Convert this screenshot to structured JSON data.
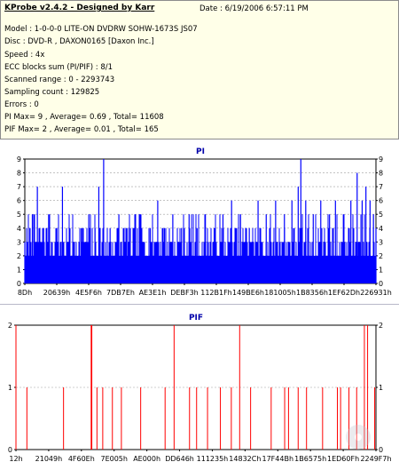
{
  "header": {
    "title": "KProbe v2.4.2 - Designed by Karr",
    "date": "Date : 6/19/2006 6:57:11 PM"
  },
  "info_lines": [
    "Model : 1-0-0-0 LITE-ON DVDRW SOHW-1673S JS07",
    "Disc : DVD-R , DAXON0165 [Daxon Inc.]",
    "Speed : 4x",
    "ECC blocks sum (PI/PIF) : 8/1",
    "Scanned range : 0 - 2293743",
    "Sampling count : 129825",
    "Errors : 0",
    "PI Max= 9 , Average= 0.69 , Total= 11608",
    "PIF Max= 2 , Average= 0.01 , Total= 165"
  ],
  "colors": {
    "pi_bar": "#0000ff",
    "pif_bar": "#ff0000",
    "plot_bg": "#ffffff",
    "title_text": "#0000aa",
    "grid": "#a0a0a0"
  },
  "chart_data": [
    {
      "type": "bar",
      "title": "PI",
      "x_ticks": [
        "8Dh",
        "20639h",
        "4E5F6h",
        "7DB7Eh",
        "AE3E1h",
        "DEBF3h",
        "112B1Fh",
        "149BE6h",
        "181005h",
        "1B8356h",
        "1EF62Dh",
        "226931h"
      ],
      "y_ticks": [
        0,
        1,
        2,
        3,
        4,
        5,
        6,
        7,
        8,
        9
      ],
      "ylim": [
        0,
        9
      ],
      "grid": true,
      "max": 9,
      "average": 0.69,
      "baseline_level": 2,
      "peaks": [
        {
          "x": "0x0008D",
          "y": 3
        },
        {
          "x": "0x08000",
          "y": 4
        },
        {
          "x": "0x0C000",
          "y": 5
        },
        {
          "x": "0x14000",
          "y": 7
        },
        {
          "x": "0x1E000",
          "y": 4
        },
        {
          "x": "0x26000",
          "y": 5
        },
        {
          "x": "0x33000",
          "y": 4
        },
        {
          "x": "0x3C000",
          "y": 7
        },
        {
          "x": "0x48000",
          "y": 4
        },
        {
          "x": "0x4E5F6",
          "y": 3
        },
        {
          "x": "0x5A000",
          "y": 4
        },
        {
          "x": "0x66000",
          "y": 5
        },
        {
          "x": "0x70000",
          "y": 4
        },
        {
          "x": "0x76000",
          "y": 7
        },
        {
          "x": "0x7DB7E",
          "y": 9
        },
        {
          "x": "0x88000",
          "y": 4
        },
        {
          "x": "0x96000",
          "y": 5
        },
        {
          "x": "0xA2000",
          "y": 4
        },
        {
          "x": "0xAE3E1",
          "y": 4
        },
        {
          "x": "0xB8000",
          "y": 5
        },
        {
          "x": "0xC8000",
          "y": 4
        },
        {
          "x": "0xD4000",
          "y": 6
        },
        {
          "x": "0xDEBF3",
          "y": 4
        },
        {
          "x": "0xEC000",
          "y": 5
        },
        {
          "x": "0xFA000",
          "y": 4
        },
        {
          "x": "0x106000",
          "y": 5
        },
        {
          "x": "0x112B1F",
          "y": 4
        },
        {
          "x": "0x120000",
          "y": 5
        },
        {
          "x": "0x12E000",
          "y": 4
        },
        {
          "x": "0x13C000",
          "y": 5
        },
        {
          "x": "0x149BE6",
          "y": 6
        },
        {
          "x": "0x158000",
          "y": 5
        },
        {
          "x": "0x166000",
          "y": 4
        },
        {
          "x": "0x174000",
          "y": 6
        },
        {
          "x": "0x181005",
          "y": 5
        },
        {
          "x": "0x190000",
          "y": 6
        },
        {
          "x": "0x19E000",
          "y": 5
        },
        {
          "x": "0x1AA000",
          "y": 6
        },
        {
          "x": "0x1B4000",
          "y": 7
        },
        {
          "x": "0x1B8356",
          "y": 9
        },
        {
          "x": "0x1C0000",
          "y": 6
        },
        {
          "x": "0x1CC000",
          "y": 5
        },
        {
          "x": "0x1D8000",
          "y": 6
        },
        {
          "x": "0x1E6000",
          "y": 5
        },
        {
          "x": "0x1EF62D",
          "y": 6
        },
        {
          "x": "0x1FC000",
          "y": 5
        },
        {
          "x": "0x208000",
          "y": 6
        },
        {
          "x": "0x212000",
          "y": 8
        },
        {
          "x": "0x21A000",
          "y": 6
        },
        {
          "x": "0x220000",
          "y": 7
        },
        {
          "x": "0x226931",
          "y": 6
        },
        {
          "x": "0x22C000",
          "y": 5
        },
        {
          "x": "0x22FFEF",
          "y": 4
        }
      ]
    },
    {
      "type": "bar",
      "title": "PIF",
      "x_ticks": [
        "12h",
        "21049h",
        "4F60Eh",
        "7E005h",
        "AE000h",
        "DD646h",
        "111235h",
        "14832Ch",
        "17F44Bh",
        "1B6575h",
        "1ED60Fh",
        "2249F7h"
      ],
      "y_ticks": [
        0,
        1,
        2
      ],
      "ylim": [
        0,
        2
      ],
      "grid": true,
      "max": 2,
      "average": 0.01,
      "spikes": [
        {
          "x": "0x00012",
          "y": 2
        },
        {
          "x": "0x11000",
          "y": 1
        },
        {
          "x": "0x4A000",
          "y": 1
        },
        {
          "x": "0x75000",
          "y": 2
        },
        {
          "x": "0x76000",
          "y": 2
        },
        {
          "x": "0x7E005",
          "y": 1
        },
        {
          "x": "0x87000",
          "y": 1
        },
        {
          "x": "0x96000",
          "y": 1
        },
        {
          "x": "0xA4000",
          "y": 1
        },
        {
          "x": "0xC2000",
          "y": 1
        },
        {
          "x": "0xE8000",
          "y": 1
        },
        {
          "x": "0xF6000",
          "y": 2
        },
        {
          "x": "0x10E000",
          "y": 1
        },
        {
          "x": "0x119000",
          "y": 1
        },
        {
          "x": "0x12A000",
          "y": 1
        },
        {
          "x": "0x13E000",
          "y": 1
        },
        {
          "x": "0x14F000",
          "y": 1
        },
        {
          "x": "0x15C000",
          "y": 2
        },
        {
          "x": "0x16D000",
          "y": 1
        },
        {
          "x": "0x18D000",
          "y": 1
        },
        {
          "x": "0x1A2000",
          "y": 1
        },
        {
          "x": "0x1A8000",
          "y": 1
        },
        {
          "x": "0x1B7000",
          "y": 1
        },
        {
          "x": "0x1C4000",
          "y": 1
        },
        {
          "x": "0x1DD000",
          "y": 1
        },
        {
          "x": "0x1F4000",
          "y": 1
        },
        {
          "x": "0x1F9000",
          "y": 1
        },
        {
          "x": "0x206000",
          "y": 1
        },
        {
          "x": "0x212000",
          "y": 1
        },
        {
          "x": "0x21E000",
          "y": 2
        },
        {
          "x": "0x223000",
          "y": 2
        },
        {
          "x": "0x22E000",
          "y": 1
        }
      ]
    }
  ]
}
